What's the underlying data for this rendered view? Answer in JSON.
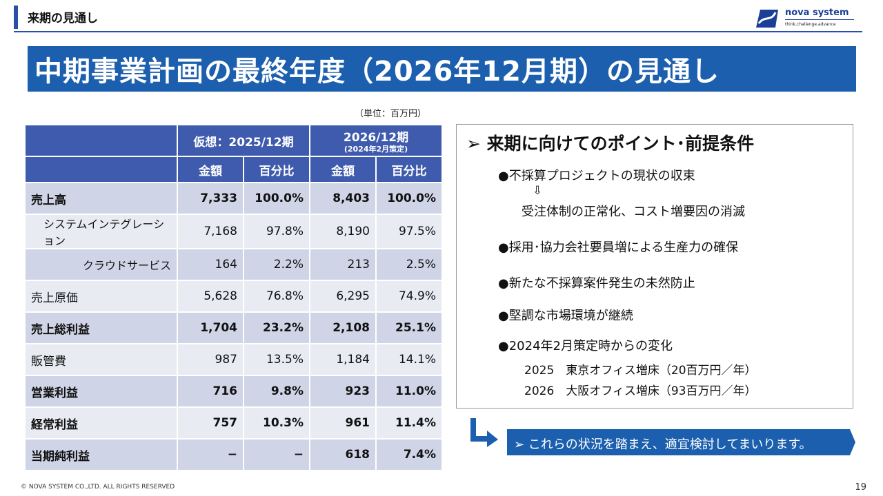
{
  "header": {
    "title": "来期の見通し"
  },
  "logo": {
    "name": "nova system",
    "tagline": "think,challenge,advance",
    "brand_color": "#1b3e96"
  },
  "banner": {
    "title": "中期事業計画の最終年度（2026年12月期）の見通し",
    "color": "#1c5fae"
  },
  "unit": "（単位：百万円）",
  "table": {
    "period1": "仮想：2025/12期",
    "period2": "2026/12期",
    "period2_note": "(2024年2月策定)",
    "subheads": [
      "金額",
      "百分比",
      "金額",
      "百分比"
    ],
    "rows": [
      {
        "label": "売上高",
        "v1": "7,333",
        "p1": "100.0%",
        "v2": "8,403",
        "p2": "100.0%"
      },
      {
        "label": "システムインテグレーション",
        "v1": "7,168",
        "p1": "97.8%",
        "v2": "8,190",
        "p2": "97.5%"
      },
      {
        "label": "クラウドサービス",
        "v1": "164",
        "p1": "2.2%",
        "v2": "213",
        "p2": "2.5%"
      },
      {
        "label": "売上原価",
        "v1": "5,628",
        "p1": "76.8%",
        "v2": "6,295",
        "p2": "74.9%"
      },
      {
        "label": "売上総利益",
        "v1": "1,704",
        "p1": "23.2%",
        "v2": "2,108",
        "p2": "25.1%"
      },
      {
        "label": "販管費",
        "v1": "987",
        "p1": "13.5%",
        "v2": "1,184",
        "p2": "14.1%"
      },
      {
        "label": "営業利益",
        "v1": "716",
        "p1": "9.8%",
        "v2": "923",
        "p2": "11.0%"
      },
      {
        "label": "経常利益",
        "v1": "757",
        "p1": "10.3%",
        "v2": "961",
        "p2": "11.4%"
      },
      {
        "label": "当期純利益",
        "v1": "−",
        "p1": "−",
        "v2": "618",
        "p2": "7.4%"
      }
    ]
  },
  "points": {
    "heading": "➢ 来期に向けてのポイント･前提条件",
    "p1": "●不採算プロジェクトの現状の収束",
    "p1_arrow": "⇩",
    "p1_result": "受注体制の正常化、コスト増要因の消滅",
    "p2": "●採用･協力会社要員増による生産力の確保",
    "p3": "●新たな不採算案件発生の未然防止",
    "p4": "●堅調な市場環境が継続",
    "p5": "●2024年2月策定時からの変化",
    "p5_a": "2025　東京オフィス増床（20百万円／年）",
    "p5_b": "2026　大阪オフィス増床（93百万円／年）"
  },
  "callout": {
    "text": "➢ これらの状況を踏まえ、適宜検討してまいります。",
    "color": "#1c5fae"
  },
  "footer": {
    "copyright": "© NOVA SYSTEM CO.,LTD. ALL RIGHTS RESERVED",
    "page": "19"
  }
}
